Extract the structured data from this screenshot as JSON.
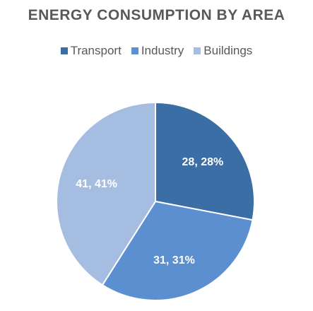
{
  "chart_data": {
    "type": "pie",
    "title": "ENERGY CONSUMPTION BY AREA",
    "legend_position": "top",
    "categories": [
      "Transport",
      "Industry",
      "Buildings"
    ],
    "values": [
      28,
      31,
      41
    ],
    "percentages": [
      "28%",
      "31%",
      "41%"
    ],
    "data_labels": [
      "28, 28%",
      "31, 31%",
      "41, 41%"
    ],
    "colors": [
      "#3a6ea5",
      "#5b8fd0",
      "#a5bde0"
    ]
  }
}
